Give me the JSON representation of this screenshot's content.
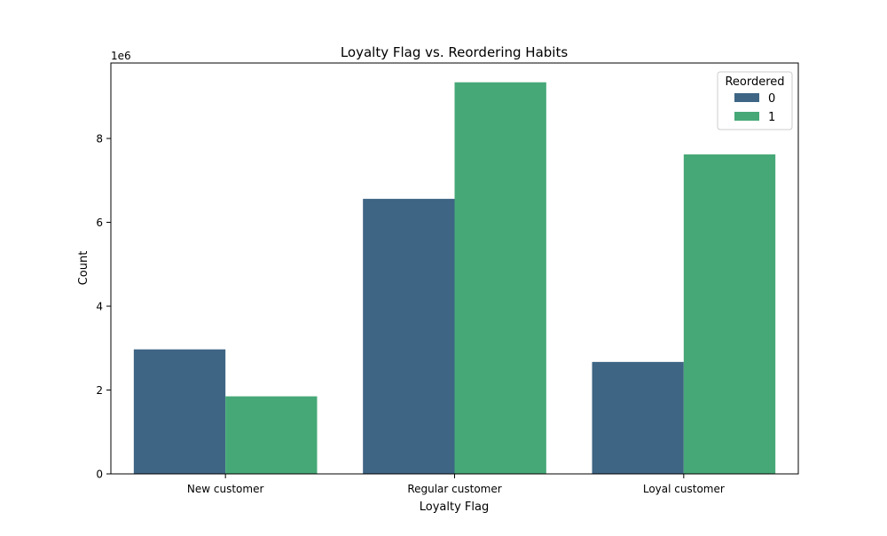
{
  "chart_data": {
    "type": "bar",
    "title": "Loyalty Flag vs. Reordering Habits",
    "xlabel": "Loyalty Flag",
    "ylabel": "Count",
    "offset_label": "1e6",
    "categories": [
      "New customer",
      "Regular customer",
      "Loyal customer"
    ],
    "ylim": [
      0,
      9800000
    ],
    "yticks": [
      0,
      2000000,
      4000000,
      6000000,
      8000000
    ],
    "ytick_labels": [
      "0",
      "2",
      "4",
      "6",
      "8"
    ],
    "grid": false,
    "legend": {
      "title": "Reordered",
      "position": "top-right"
    },
    "series": [
      {
        "name": "0",
        "color": "#3e6584",
        "values": [
          2970000,
          6560000,
          2670000
        ]
      },
      {
        "name": "1",
        "color": "#46a877",
        "values": [
          1850000,
          9340000,
          7620000
        ]
      }
    ]
  }
}
